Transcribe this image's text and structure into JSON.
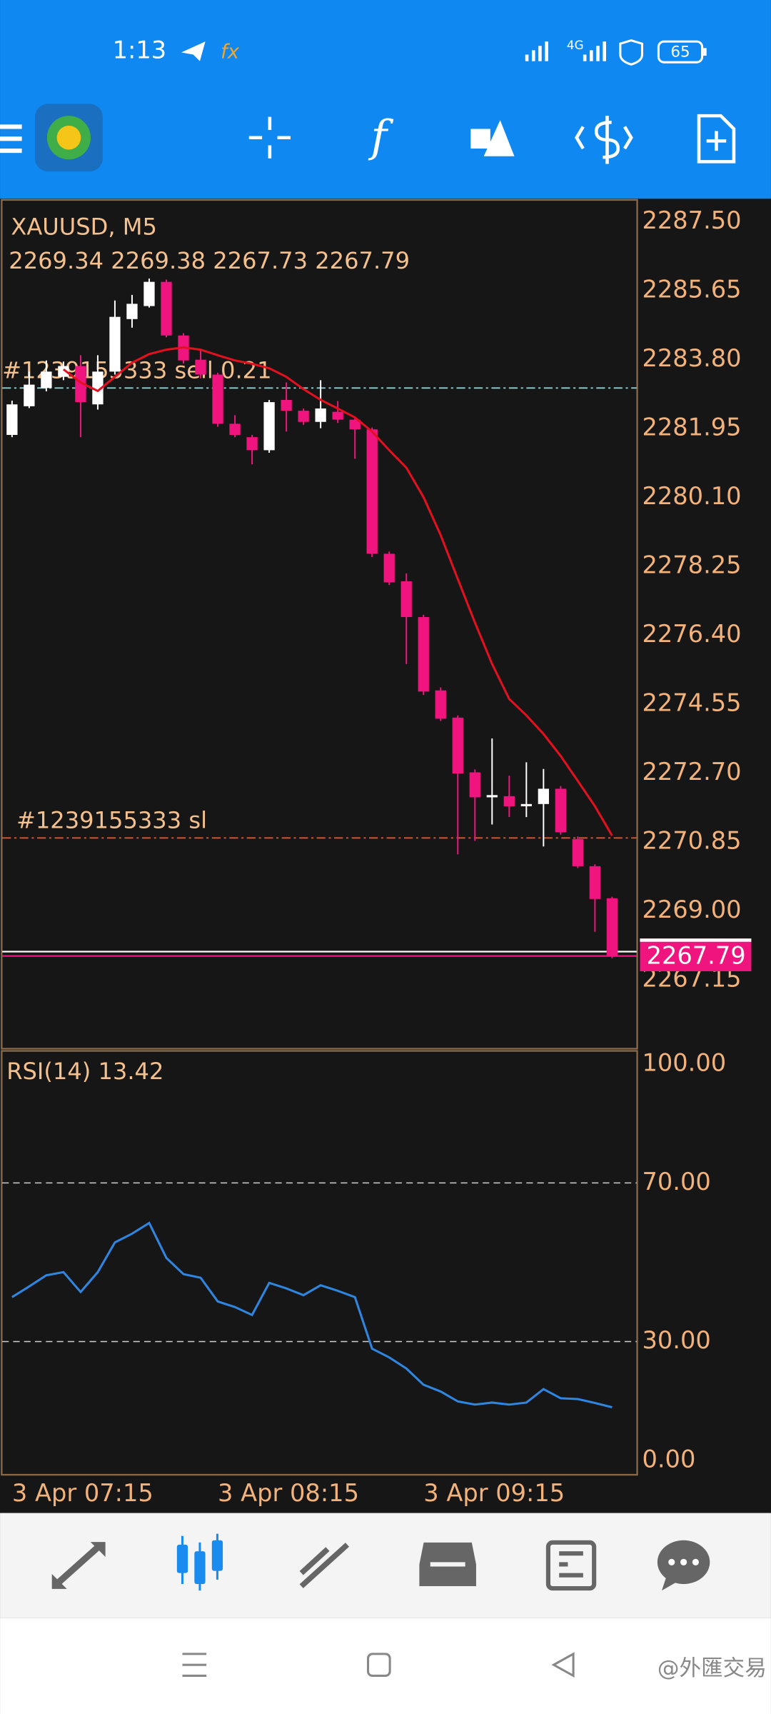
{
  "status_bar": {
    "time": "1:13",
    "network": "4G",
    "battery": "65"
  },
  "chart": {
    "symbol_label": "XAUUSD, M5",
    "ohlc_label": "2269.34 2269.38 2267.73 2267.79",
    "up_color": "#ffffff",
    "down_color": "#f0147e",
    "ma_color": "#e3101f",
    "rsi_color": "#2f86e0",
    "candles": {
      "open": [
        2281.78,
        2282.55,
        2283.04,
        2283.34,
        2283.63,
        2282.6,
        2283.48,
        2284.89,
        2285.24,
        2285.89,
        2284.45,
        2283.8,
        2283.4,
        2282.08,
        2281.72,
        2281.37,
        2282.72,
        2282.43,
        2282.13,
        2282.4,
        2282.19,
        2281.93,
        2278.59,
        2277.85,
        2276.89,
        2274.92,
        2274.19,
        2272.72,
        2272.05,
        2272.08,
        2271.81,
        2271.87,
        2272.28,
        2270.93,
        2270.2,
        2269.34
      ],
      "high": [
        2282.7,
        2283.48,
        2283.78,
        2283.75,
        2283.92,
        2283.92,
        2285.39,
        2285.54,
        2285.98,
        2285.95,
        2284.51,
        2284.07,
        2283.45,
        2282.31,
        2281.78,
        2282.72,
        2283.19,
        2282.49,
        2283.25,
        2282.69,
        2282.25,
        2281.98,
        2278.65,
        2278.06,
        2276.95,
        2275.0,
        2274.25,
        2272.8,
        2273.63,
        2272.63,
        2272.99,
        2272.81,
        2272.35,
        2271.0,
        2270.25,
        2269.38
      ],
      "low": [
        2281.72,
        2282.5,
        2282.95,
        2283.25,
        2281.72,
        2282.46,
        2283.4,
        2284.66,
        2285.2,
        2284.4,
        2283.7,
        2283.3,
        2282.0,
        2281.72,
        2280.99,
        2281.3,
        2281.87,
        2282.05,
        2281.96,
        2282.1,
        2281.14,
        2278.5,
        2277.75,
        2275.63,
        2274.8,
        2274.1,
        2270.52,
        2270.88,
        2271.32,
        2271.52,
        2271.52,
        2270.73,
        2271.05,
        2270.15,
        2268.44,
        2267.73
      ],
      "close": [
        2282.6,
        2283.13,
        2283.48,
        2283.63,
        2282.66,
        2283.48,
        2284.95,
        2285.3,
        2285.89,
        2284.45,
        2283.78,
        2283.4,
        2282.08,
        2281.78,
        2281.37,
        2282.66,
        2282.43,
        2282.13,
        2282.49,
        2282.19,
        2281.93,
        2278.59,
        2277.82,
        2276.89,
        2274.89,
        2274.16,
        2272.69,
        2272.05,
        2272.11,
        2271.81,
        2271.87,
        2272.28,
        2271.11,
        2270.2,
        2269.32,
        2267.79
      ]
    },
    "ma_values": [
      null,
      null,
      null,
      2283.54,
      2283.19,
      2282.96,
      2283.34,
      2283.72,
      2283.95,
      2284.07,
      2284.13,
      2284.07,
      2283.92,
      2283.78,
      2283.69,
      2283.57,
      2283.34,
      2283.01,
      2282.72,
      2282.49,
      2282.25,
      2281.87,
      2281.37,
      2280.9,
      2280.11,
      2279.09,
      2277.91,
      2276.74,
      2275.63,
      2274.69,
      2274.25,
      2273.75,
      2273.16,
      2272.49,
      2271.81,
      2271.02
    ],
    "ylim": [
      2265.3,
      2288.09
    ],
    "yticks": [
      {
        "value": 2287.5,
        "label": "2287.50"
      },
      {
        "value": 2285.65,
        "label": "2285.65"
      },
      {
        "value": 2283.8,
        "label": "2283.80"
      },
      {
        "value": 2281.95,
        "label": "2281.95"
      },
      {
        "value": 2280.1,
        "label": "2280.10"
      },
      {
        "value": 2278.25,
        "label": "2278.25"
      },
      {
        "value": 2276.4,
        "label": "2276.40"
      },
      {
        "value": 2274.55,
        "label": "2274.55"
      },
      {
        "value": 2272.7,
        "label": "2272.70"
      },
      {
        "value": 2270.85,
        "label": "2270.85"
      },
      {
        "value": 2269,
        "label": "2269.00"
      },
      {
        "value": 2267.15,
        "label": "2267.15"
      }
    ],
    "orders": [
      {
        "label": "#1239155333 sell  0.21",
        "price": 2283.04,
        "color": "#7fd6d6"
      },
      {
        "label": "#1239155333 sl",
        "price": 2270.96,
        "color": "#e0552e"
      }
    ],
    "current_price": {
      "value": 2267.79,
      "label": "2267.79"
    },
    "x_labels": [
      "3 Apr 07:15",
      "3 Apr 08:15",
      "3 Apr 09:15"
    ],
    "rsi": {
      "label": "RSI(14) 13.42",
      "values": [
        41.2,
        43.9,
        46.7,
        47.5,
        42.5,
        47.5,
        55.0,
        57.2,
        59.9,
        51.1,
        47.0,
        46.1,
        40.1,
        38.7,
        36.7,
        44.8,
        43.4,
        41.7,
        44.2,
        42.8,
        41.2,
        28.2,
        26.0,
        23.2,
        19.1,
        17.4,
        14.9,
        14.1,
        14.6,
        14.1,
        14.6,
        18.0,
        15.7,
        15.5,
        14.5,
        13.42
      ],
      "ylim": [
        -3.6,
        103.3
      ],
      "levels": [
        70,
        30
      ],
      "yticks": [
        {
          "value": 100,
          "label": "100.00"
        },
        {
          "value": 70,
          "label": "70.00"
        },
        {
          "value": 30,
          "label": "30.00"
        },
        {
          "value": 0,
          "label": "0.00"
        }
      ]
    }
  },
  "watermark": "@外匯交易"
}
